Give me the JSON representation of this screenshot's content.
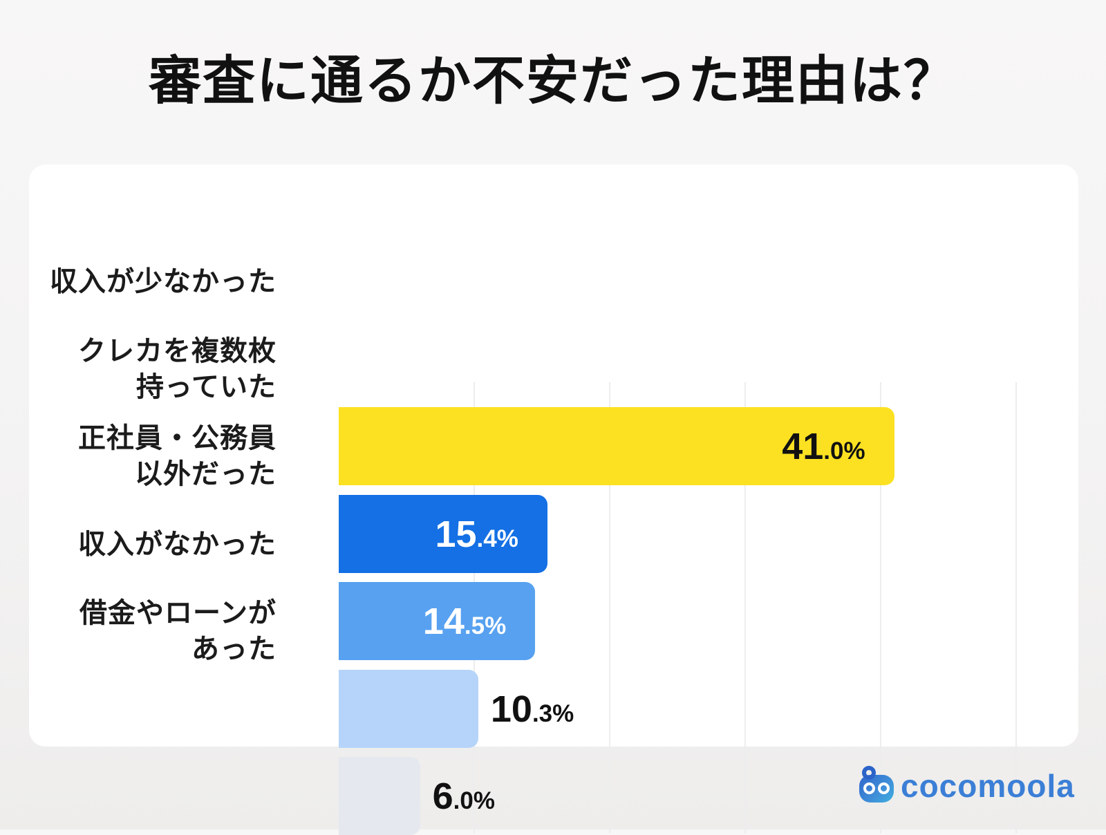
{
  "title": "審査に通るか不安だった理由は？",
  "brand": {
    "name": "cocomoola"
  },
  "colors": {
    "page_bg": "#F4F3F3",
    "card_bg": "#FFFFFF",
    "gridline": "#EDEDED",
    "title_text": "#111111",
    "label_text": "#1B1B1B",
    "brand_blue": "#3B7FD6"
  },
  "chart_data": {
    "type": "bar",
    "orientation": "horizontal",
    "title": "審査に通るか不安だった理由は？",
    "categories": [
      "収入が少なかった",
      "クレカを複数枚 持っていた",
      "正社員・公務員 以外だった",
      "収入がなかった",
      "借金やローンが あった"
    ],
    "category_lines": [
      [
        "収入が少なかった"
      ],
      [
        "クレカを複数枚",
        "持っていた"
      ],
      [
        "正社員・公務員",
        "以外だった"
      ],
      [
        "収入がなかった"
      ],
      [
        "借金やローンが",
        "あった"
      ]
    ],
    "values": [
      41.0,
      15.4,
      14.5,
      10.3,
      6.0
    ],
    "value_labels": [
      "41.0%",
      "15.4%",
      "14.5%",
      "10.3%",
      "6.0%"
    ],
    "unit": "%",
    "xlim": [
      0,
      57
    ],
    "gridlines_pct": [
      10,
      20,
      30,
      40,
      50
    ],
    "grid": true,
    "legend": false,
    "bar_colors": [
      "#FBE122",
      "#1470E4",
      "#57A1F0",
      "#B6D4F9",
      "#E5E8EE"
    ],
    "value_label_colors": [
      "#111111",
      "#FFFFFF",
      "#FFFFFF",
      "#111111",
      "#111111"
    ],
    "value_label_placement": [
      "inside",
      "inside",
      "inside",
      "outside",
      "outside"
    ]
  }
}
